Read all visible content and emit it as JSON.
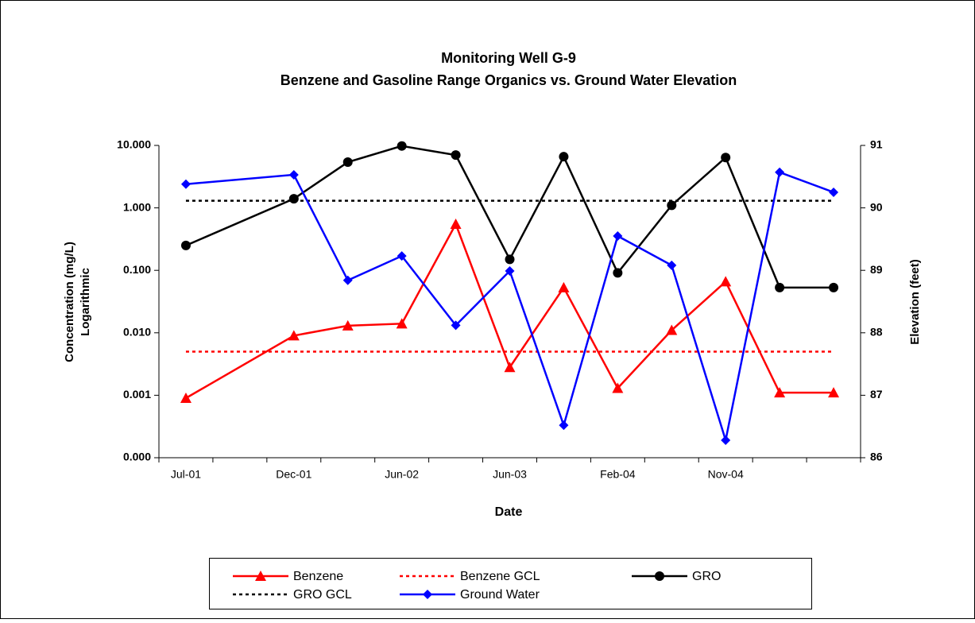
{
  "chart_data": {
    "type": "line",
    "title": "Monitoring Well G-9",
    "subtitle": "Benzene and Gasoline Range Organics vs. Ground Water Elevation",
    "xlabel": "Date",
    "ylabel": [
      "Concentration (mg/L)",
      "Logarithmic"
    ],
    "y2label": "Elevation (feet)",
    "categories": [
      "Jul-01",
      null,
      "Dec-01",
      null,
      "Jun-02",
      null,
      "Jun-03",
      null,
      "Feb-04",
      null,
      "Nov-04",
      null,
      null
    ],
    "ylog": true,
    "ylim": [
      0.0001,
      10
    ],
    "yticks": [
      {
        "value": 0.0001,
        "label": "0.000"
      },
      {
        "value": 0.001,
        "label": "0.001"
      },
      {
        "value": 0.01,
        "label": "0.010"
      },
      {
        "value": 0.1,
        "label": "0.100"
      },
      {
        "value": 1,
        "label": "1.000"
      },
      {
        "value": 10,
        "label": "10.000"
      }
    ],
    "y2lim": [
      86,
      91
    ],
    "y2ticks": [
      86,
      87,
      88,
      89,
      90,
      91
    ],
    "connect_gaps": true,
    "legend": "bottom",
    "series": [
      {
        "name": "Benzene",
        "color": "#ff0000",
        "marker": "triangle",
        "line_style": "solid",
        "values": [
          0.0009,
          null,
          0.009,
          0.013,
          0.014,
          0.55,
          0.0028,
          0.053,
          0.0013,
          0.011,
          0.066,
          0.0011,
          0.0011
        ]
      },
      {
        "name": "Benzene GCL",
        "color": "#ff0000",
        "marker": "none",
        "line_style": "dotted",
        "values": [
          0.005,
          0.005,
          0.005,
          0.005,
          0.005,
          0.005,
          0.005,
          0.005,
          0.005,
          0.005,
          0.005,
          0.005,
          0.005
        ]
      },
      {
        "name": "GRO",
        "color": "#000000",
        "marker": "circle",
        "line_style": "solid",
        "values": [
          0.25,
          null,
          1.4,
          5.4,
          9.8,
          7,
          0.15,
          6.6,
          0.091,
          1.1,
          6.4,
          0.053,
          0.053
        ]
      },
      {
        "name": "GRO GCL",
        "color": "#000000",
        "marker": "none",
        "line_style": "dotted",
        "values": [
          1.3,
          1.3,
          1.3,
          1.3,
          1.3,
          1.3,
          1.3,
          1.3,
          1.3,
          1.3,
          1.3,
          1.3,
          1.3
        ]
      },
      {
        "name": "Ground Water",
        "color": "#0000ff",
        "marker": "diamond",
        "line_style": "solid",
        "axis": "y2",
        "values": [
          90.38,
          null,
          90.53,
          88.84,
          89.23,
          88.12,
          88.99,
          86.52,
          89.55,
          89.08,
          86.28,
          90.57,
          90.25
        ]
      }
    ]
  }
}
